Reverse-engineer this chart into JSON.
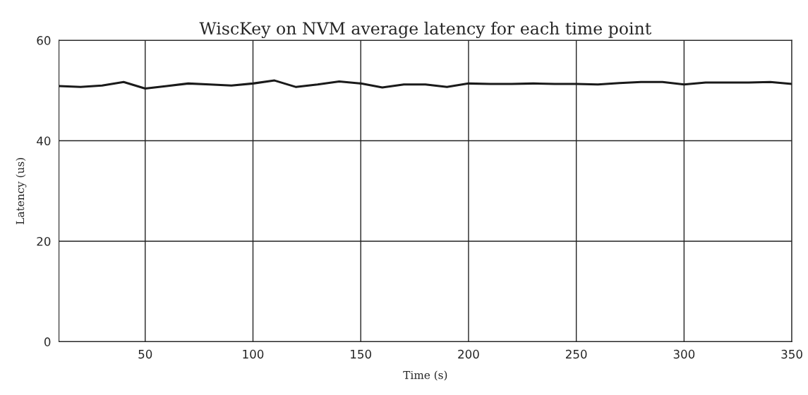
{
  "chart_data": {
    "type": "line",
    "title": "WiscKey on NVM average latency for each time point",
    "xlabel": "Time (s)",
    "ylabel": "Latency (us)",
    "x": [
      10,
      20,
      30,
      40,
      50,
      60,
      70,
      80,
      90,
      100,
      110,
      120,
      130,
      140,
      150,
      160,
      170,
      180,
      190,
      200,
      210,
      220,
      230,
      240,
      250,
      260,
      270,
      280,
      290,
      300,
      310,
      320,
      330,
      340,
      350
    ],
    "series": [
      {
        "color": "#1a1a1a",
        "values": [
          50.9,
          50.7,
          51.0,
          51.7,
          50.4,
          50.9,
          51.4,
          51.2,
          51.0,
          51.4,
          52.0,
          50.7,
          51.2,
          51.8,
          51.4,
          50.6,
          51.2,
          51.2,
          50.7,
          51.4,
          51.3,
          51.3,
          51.4,
          51.3,
          51.3,
          51.2,
          51.5,
          51.7,
          51.7,
          51.2,
          51.6,
          51.6,
          51.6,
          51.7,
          51.3
        ]
      }
    ],
    "xlim": [
      10,
      350
    ],
    "xticks": [
      50,
      100,
      150,
      200,
      250,
      300,
      350
    ],
    "ylim": [
      0,
      60
    ],
    "yticks": [
      0,
      20,
      40,
      60
    ],
    "grid": true,
    "marker": "none",
    "line_style": "solid"
  }
}
